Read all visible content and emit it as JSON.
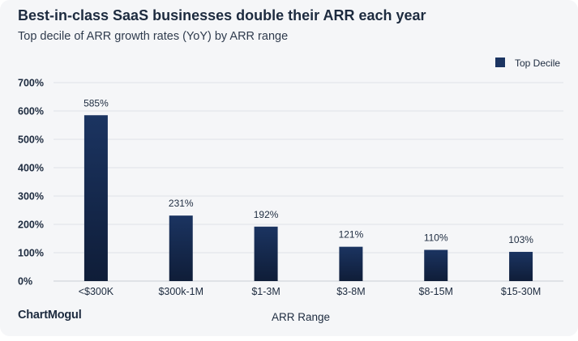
{
  "chart_data": {
    "type": "bar",
    "title": "Best-in-class SaaS businesses double their ARR each year",
    "subtitle": "Top decile of ARR growth rates (YoY) by ARR range",
    "xlabel": "ARR Range",
    "ylabel": "",
    "categories": [
      "<$300K",
      "$300k-1M",
      "$1-3M",
      "$3-8M",
      "$8-15M",
      "$15-30M"
    ],
    "series": [
      {
        "name": "Top Decile",
        "values": [
          585,
          231,
          192,
          121,
          110,
          103
        ],
        "data_labels": [
          "585%",
          "231%",
          "192%",
          "121%",
          "110%",
          "103%"
        ],
        "color": "#1b3461"
      }
    ],
    "ylim": [
      0,
      700
    ],
    "y_ticks": [
      0,
      100,
      200,
      300,
      400,
      500,
      600,
      700
    ],
    "y_tick_labels": [
      "0%",
      "100%",
      "200%",
      "300%",
      "400%",
      "500%",
      "600%",
      "700%"
    ],
    "grid": true,
    "legend_position": "top-right",
    "colors": {
      "bar_top": "#1b3461",
      "bar_bottom": "#0f1d38",
      "grid": "#dfe2e7",
      "text": "#1d2b3f"
    }
  },
  "footer": {
    "logo_text": "ChartMogul"
  }
}
